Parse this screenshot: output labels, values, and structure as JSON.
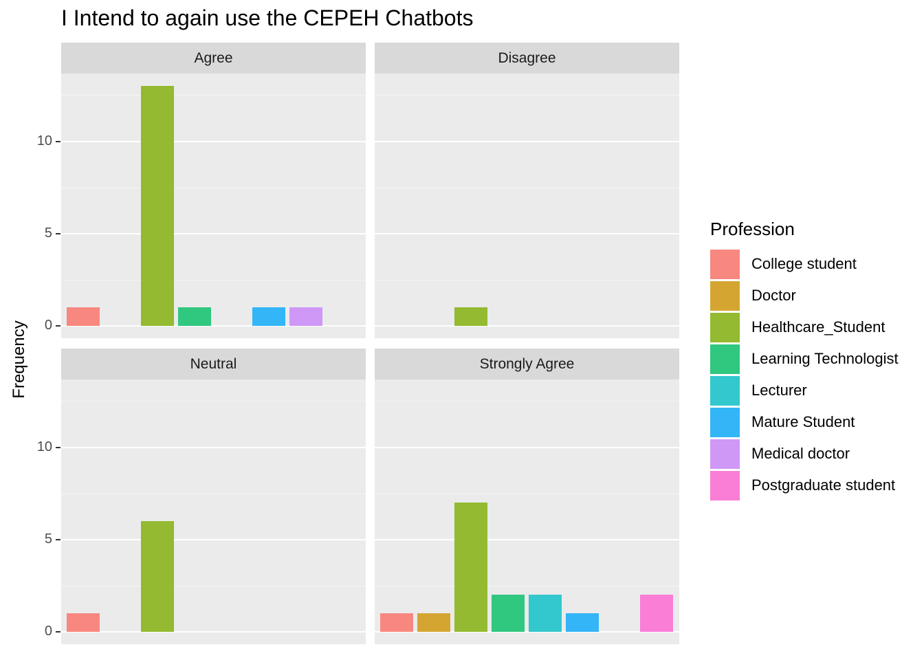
{
  "chart_data": {
    "type": "bar",
    "title": "I Intend to again use the CEPEH Chatbots",
    "ylabel": "Frequency",
    "ylim": [
      0,
      13
    ],
    "yticks": [
      "0",
      "5",
      "10"
    ],
    "grid": true,
    "legend_title": "Profession",
    "legend_position": "right",
    "categories": [
      "College student",
      "Doctor",
      "Healthcare_Student",
      "Learning Technologist",
      "Lecturer",
      "Mature Student",
      "Medical doctor",
      "Postgraduate student"
    ],
    "colors": [
      "#F8877F",
      "#D4A631",
      "#93BA30",
      "#30C77F",
      "#33C7CE",
      "#33B5F7",
      "#CF97F6",
      "#FA7ED6"
    ],
    "facets": [
      {
        "label": "Agree",
        "values": [
          1,
          0,
          13,
          1,
          0,
          1,
          1,
          0
        ]
      },
      {
        "label": "Disagree",
        "values": [
          0,
          0,
          1,
          0,
          0,
          0,
          0,
          0
        ]
      },
      {
        "label": "Neutral",
        "values": [
          1,
          0,
          6,
          0,
          0,
          0,
          0,
          0
        ]
      },
      {
        "label": "Strongly Agree",
        "values": [
          1,
          1,
          7,
          2,
          2,
          1,
          0,
          2
        ]
      }
    ]
  }
}
